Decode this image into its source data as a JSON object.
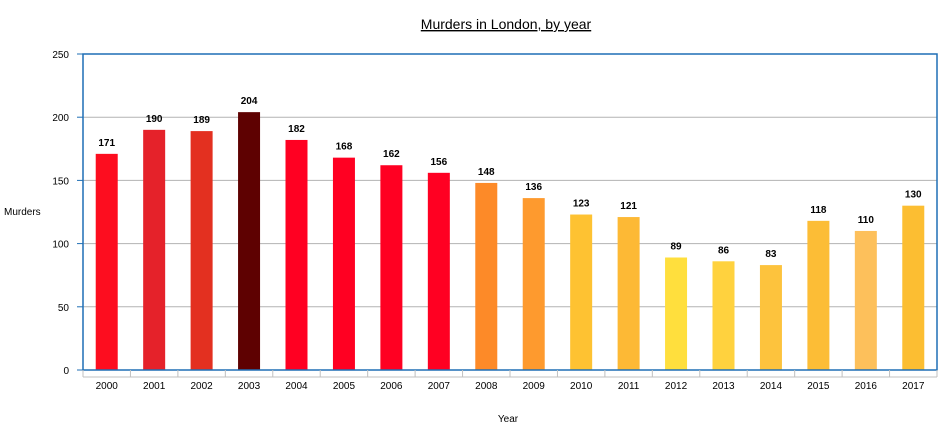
{
  "chart_data": {
    "type": "bar",
    "title": "Murders in London, by year",
    "xlabel": "Year",
    "ylabel": "Murders",
    "ylim": [
      0,
      250
    ],
    "yticks": [
      0,
      50,
      100,
      150,
      200,
      250
    ],
    "grid": true,
    "categories": [
      "2000",
      "2001",
      "2002",
      "2003",
      "2004",
      "2005",
      "2006",
      "2007",
      "2008",
      "2009",
      "2010",
      "2011",
      "2012",
      "2013",
      "2014",
      "2015",
      "2016",
      "2017"
    ],
    "values": [
      171,
      190,
      189,
      204,
      182,
      168,
      162,
      156,
      148,
      136,
      123,
      121,
      89,
      86,
      83,
      118,
      110,
      130
    ],
    "colors": [
      "#fd0d1f",
      "#e5222a",
      "#e33020",
      "#5e0101",
      "#ff0022",
      "#ff0022",
      "#ff0022",
      "#ff0022",
      "#fd8a28",
      "#fe9a2e",
      "#fec232",
      "#fdb935",
      "#ffdf3d",
      "#ffd23e",
      "#fdc33d",
      "#fcbd36",
      "#fdc05b",
      "#fcbe32"
    ]
  }
}
